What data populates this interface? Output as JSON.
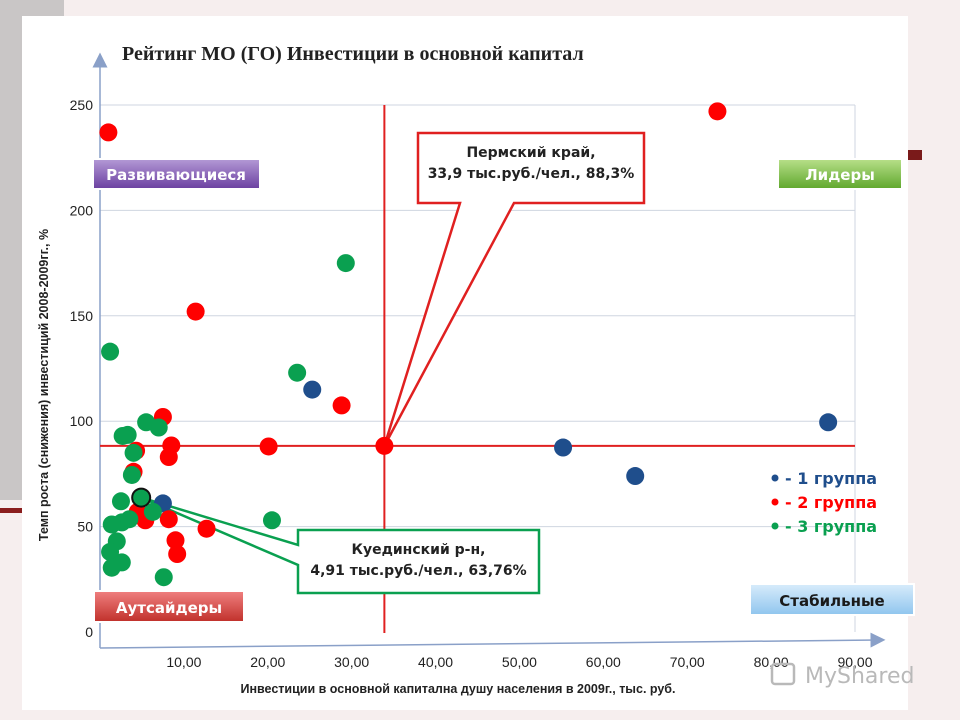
{
  "chart_data": {
    "type": "scatter",
    "title": "Рейтинг МО (ГО) Инвестиции в основной капитал",
    "xlabel": "Инвестиции в основной капитална душу населения в 2009г.,  тыс. руб.",
    "ylabel": "Темп роста (снижения) инвестиций 2008-2009гг., %",
    "xlim": [
      0,
      90
    ],
    "ylim": [
      0,
      250
    ],
    "x_ticks": [
      "10,00",
      "20,00",
      "30,00",
      "40,00",
      "50,00",
      "60,00",
      "70,00",
      "80,00",
      "90,00"
    ],
    "y_ticks": [
      "0",
      "50",
      "100",
      "150",
      "200",
      "250"
    ],
    "grid": true,
    "legend_position": "right",
    "reference_lines": {
      "x": 33.9,
      "y": 88.3
    },
    "series": [
      {
        "name": "- 1 группа",
        "color": "#1f4e8c",
        "points": [
          [
            25.3,
            115
          ],
          [
            55.2,
            87.5
          ],
          [
            63.8,
            74
          ],
          [
            86.8,
            99.5
          ],
          [
            7.5,
            61
          ]
        ]
      },
      {
        "name": "- 2 группа",
        "color": "#ff0000",
        "points": [
          [
            1.0,
            237
          ],
          [
            73.6,
            247
          ],
          [
            11.4,
            152
          ],
          [
            28.8,
            107.5
          ],
          [
            7.5,
            102
          ],
          [
            8.5,
            88.5
          ],
          [
            8.2,
            83
          ],
          [
            20.1,
            88
          ],
          [
            33.9,
            88.3
          ],
          [
            4.3,
            86
          ],
          [
            4.0,
            76
          ],
          [
            8.2,
            53.5
          ],
          [
            12.7,
            49
          ],
          [
            9.0,
            43.5
          ],
          [
            9.2,
            37
          ],
          [
            5.4,
            53
          ],
          [
            4.5,
            57
          ]
        ]
      },
      {
        "name": "- 3 группа",
        "color": "#0aa050",
        "points": [
          [
            1.2,
            133
          ],
          [
            29.3,
            175
          ],
          [
            23.5,
            123
          ],
          [
            5.5,
            99.5
          ],
          [
            7.0,
            97
          ],
          [
            3.3,
            93.5
          ],
          [
            2.7,
            93
          ],
          [
            4.0,
            85
          ],
          [
            3.8,
            74.5
          ],
          [
            2.5,
            62
          ],
          [
            2.6,
            52
          ],
          [
            1.4,
            51
          ],
          [
            3.5,
            53.5
          ],
          [
            6.3,
            57
          ],
          [
            2.0,
            43
          ],
          [
            1.2,
            38
          ],
          [
            2.6,
            33
          ],
          [
            1.4,
            30.5
          ],
          [
            7.6,
            26
          ],
          [
            20.5,
            53
          ]
        ]
      }
    ],
    "highlight": {
      "x": 4.91,
      "y": 63.76
    },
    "quadrants": {
      "top_left": "Развивающиеся",
      "top_right": "Лидеры",
      "bottom_left": "Аутсайдеры",
      "bottom_right": "Стабильные"
    },
    "callouts": [
      {
        "target": [
          33.9,
          88.3
        ],
        "lines": [
          "Пермский край,",
          "33,9 тыс.руб./чел., 88,3%"
        ],
        "color": "#e02020"
      },
      {
        "target": [
          4.91,
          63.76
        ],
        "lines": [
          "Куединский р-н,",
          "4,91 тыс.руб./чел., 63,76%"
        ],
        "color": "#0aa050"
      }
    ]
  },
  "watermark": "MyShared"
}
